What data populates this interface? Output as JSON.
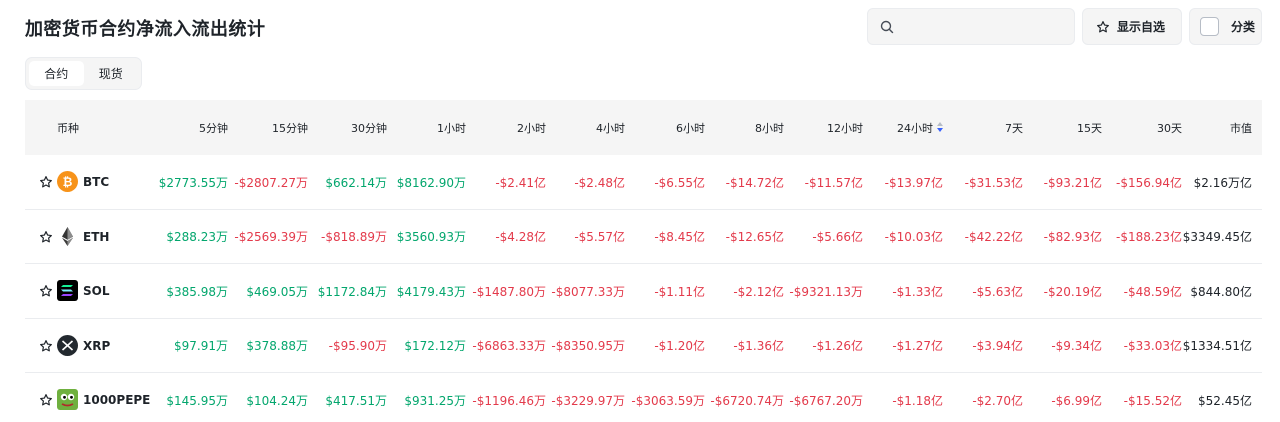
{
  "page": {
    "title": "加密货币合约净流入流出统计"
  },
  "search": {
    "placeholder": "",
    "value": ""
  },
  "buttons": {
    "favorites": "显示自选",
    "category": "分类"
  },
  "tabs": [
    {
      "label": "合约",
      "active": true
    },
    {
      "label": "现货",
      "active": false
    }
  ],
  "table": {
    "headers": [
      "币种",
      "5分钟",
      "15分钟",
      "30分钟",
      "1小时",
      "2小时",
      "4小时",
      "6小时",
      "8小时",
      "12小时",
      "24小时",
      "7天",
      "15天",
      "30天",
      "市值"
    ],
    "sorted_column": "24小时",
    "rows": [
      {
        "symbol": "BTC",
        "icon": "btc-icon",
        "values": [
          "$2773.55万",
          "-$2807.27万",
          "$662.14万",
          "$8162.90万",
          "-$2.41亿",
          "-$2.48亿",
          "-$6.55亿",
          "-$14.72亿",
          "-$11.57亿",
          "-$13.97亿",
          "-$31.53亿",
          "-$93.21亿",
          "-$156.94亿"
        ],
        "market_cap": "$2.16万亿"
      },
      {
        "symbol": "ETH",
        "icon": "eth-icon",
        "values": [
          "$288.23万",
          "-$2569.39万",
          "-$818.89万",
          "$3560.93万",
          "-$4.28亿",
          "-$5.57亿",
          "-$8.45亿",
          "-$12.65亿",
          "-$5.66亿",
          "-$10.03亿",
          "-$42.22亿",
          "-$82.93亿",
          "-$188.23亿"
        ],
        "market_cap": "$3349.45亿"
      },
      {
        "symbol": "SOL",
        "icon": "sol-icon",
        "values": [
          "$385.98万",
          "$469.05万",
          "$1172.84万",
          "$4179.43万",
          "-$1487.80万",
          "-$8077.33万",
          "-$1.11亿",
          "-$2.12亿",
          "-$9321.13万",
          "-$1.33亿",
          "-$5.63亿",
          "-$20.19亿",
          "-$48.59亿"
        ],
        "market_cap": "$844.80亿"
      },
      {
        "symbol": "XRP",
        "icon": "xrp-icon",
        "values": [
          "$97.91万",
          "$378.88万",
          "-$95.90万",
          "$172.12万",
          "-$6863.33万",
          "-$8350.95万",
          "-$1.20亿",
          "-$1.36亿",
          "-$1.26亿",
          "-$1.27亿",
          "-$3.94亿",
          "-$9.34亿",
          "-$33.03亿"
        ],
        "market_cap": "$1334.51亿"
      },
      {
        "symbol": "1000PEPE",
        "icon": "pepe-icon",
        "values": [
          "$145.95万",
          "$104.24万",
          "$417.51万",
          "$931.25万",
          "-$1196.46万",
          "-$3229.97万",
          "-$3063.59万",
          "-$6720.74万",
          "-$6767.20万",
          "-$1.18亿",
          "-$2.70亿",
          "-$6.99亿",
          "-$15.52亿"
        ],
        "market_cap": "$52.45亿"
      }
    ]
  },
  "colors": {
    "positive": "#03a66d",
    "negative": "#e33a4b",
    "accent": "#3861fb",
    "btc": "#f7931a",
    "pepe": "#3a8a2e"
  }
}
